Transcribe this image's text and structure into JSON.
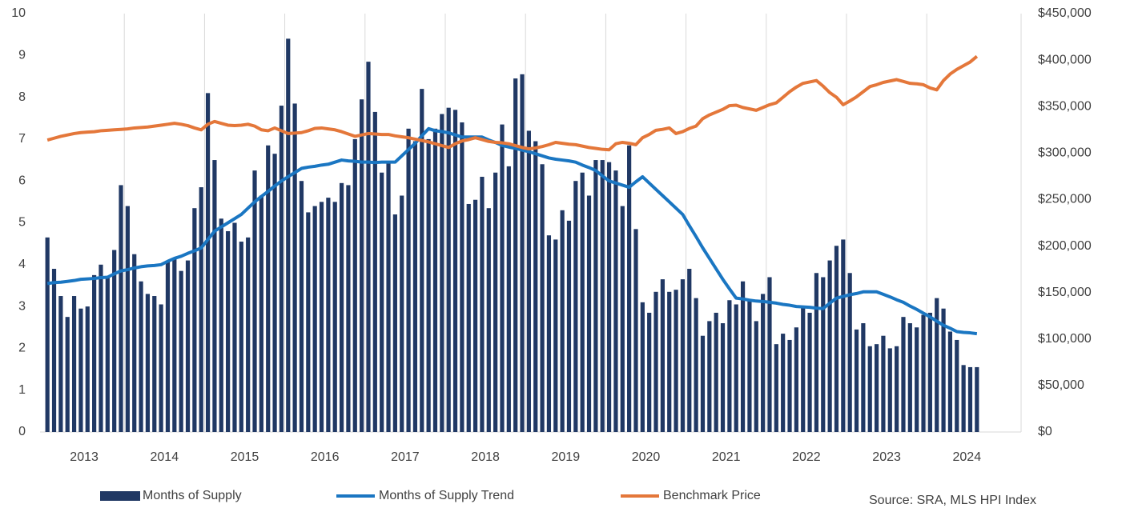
{
  "chart_data": {
    "type": "bar_line_dual",
    "source": "Source: SRA, MLS HPI Index",
    "categories": [
      null,
      null,
      null,
      null,
      null,
      null,
      "2013",
      null,
      null,
      null,
      null,
      null,
      null,
      null,
      null,
      null,
      null,
      null,
      "2014",
      null,
      null,
      null,
      null,
      null,
      null,
      null,
      null,
      null,
      null,
      null,
      "2015",
      null,
      null,
      null,
      null,
      null,
      null,
      null,
      null,
      null,
      null,
      null,
      "2016",
      null,
      null,
      null,
      null,
      null,
      null,
      null,
      null,
      null,
      null,
      null,
      "2017",
      null,
      null,
      null,
      null,
      null,
      null,
      null,
      null,
      null,
      null,
      null,
      "2018",
      null,
      null,
      null,
      null,
      null,
      null,
      null,
      null,
      null,
      null,
      null,
      "2019",
      null,
      null,
      null,
      null,
      null,
      null,
      null,
      null,
      null,
      null,
      null,
      "2020",
      null,
      null,
      null,
      null,
      null,
      null,
      null,
      null,
      null,
      null,
      null,
      "2021",
      null,
      null,
      null,
      null,
      null,
      null,
      null,
      null,
      null,
      null,
      null,
      "2022",
      null,
      null,
      null,
      null,
      null,
      null,
      null,
      null,
      null,
      null,
      null,
      "2023",
      null,
      null,
      null,
      null,
      null,
      null,
      null,
      null,
      null,
      null,
      null,
      "2024",
      null
    ],
    "series": [
      {
        "name": "Months of Supply",
        "type": "bar",
        "color": "#203864",
        "values": [
          4.65,
          3.9,
          3.25,
          2.75,
          3.25,
          2.95,
          3.0,
          3.75,
          4.0,
          3.7,
          4.35,
          5.9,
          5.4,
          4.25,
          3.6,
          3.3,
          3.25,
          3.05,
          4.1,
          4.15,
          3.85,
          4.1,
          5.35,
          5.85,
          8.1,
          6.5,
          5.1,
          4.8,
          5.0,
          4.55,
          4.65,
          6.25,
          5.65,
          6.85,
          6.65,
          7.8,
          9.4,
          7.85,
          6.0,
          5.25,
          5.4,
          5.5,
          5.6,
          5.5,
          5.95,
          5.9,
          7.0,
          7.95,
          8.85,
          7.65,
          6.2,
          6.45,
          5.2,
          5.65,
          7.25,
          6.95,
          8.2,
          7.0,
          7.25,
          7.6,
          7.75,
          7.7,
          7.4,
          5.45,
          5.55,
          6.1,
          5.35,
          6.2,
          7.35,
          6.35,
          8.45,
          8.55,
          7.2,
          6.95,
          6.4,
          4.7,
          4.6,
          5.3,
          5.05,
          6.0,
          6.2,
          5.65,
          6.5,
          6.5,
          6.45,
          6.25,
          5.4,
          6.85,
          4.85,
          3.1,
          2.85,
          3.35,
          3.65,
          3.35,
          3.4,
          3.65,
          3.9,
          3.2,
          2.3,
          2.65,
          2.85,
          2.6,
          3.15,
          3.05,
          3.6,
          3.15,
          2.65,
          3.3,
          3.7,
          2.1,
          2.35,
          2.2,
          2.5,
          3.0,
          2.85,
          3.8,
          3.7,
          4.1,
          4.45,
          4.6,
          3.8,
          2.45,
          2.6,
          2.05,
          2.1,
          2.3,
          2.0,
          2.05,
          2.75,
          2.6,
          2.5,
          2.8,
          2.85,
          3.2,
          2.95,
          2.4,
          2.2,
          1.6,
          1.55,
          1.55
        ]
      },
      {
        "name": "Months of Supply Trend",
        "type": "line",
        "color": "#1a76c2",
        "values": [
          3.55,
          3.57,
          3.58,
          3.6,
          3.62,
          3.65,
          3.66,
          3.67,
          3.69,
          3.7,
          3.78,
          3.85,
          3.88,
          3.92,
          3.95,
          3.97,
          3.98,
          4.0,
          4.08,
          4.15,
          4.2,
          4.27,
          4.33,
          4.4,
          4.6,
          4.8,
          4.9,
          5.0,
          5.1,
          5.2,
          5.35,
          5.5,
          5.63,
          5.75,
          5.88,
          6.0,
          6.1,
          6.2,
          6.3,
          6.33,
          6.35,
          6.38,
          6.4,
          6.45,
          6.5,
          6.48,
          6.47,
          6.45,
          6.45,
          6.44,
          6.45,
          6.45,
          6.45,
          6.6,
          6.75,
          6.9,
          7.08,
          7.25,
          7.2,
          7.18,
          7.15,
          7.1,
          7.05,
          7.05,
          7.05,
          7.05,
          6.98,
          6.92,
          6.85,
          6.81,
          6.78,
          6.74,
          6.7,
          6.65,
          6.6,
          6.55,
          6.52,
          6.5,
          6.48,
          6.45,
          6.38,
          6.32,
          6.25,
          6.12,
          6.0,
          5.95,
          5.9,
          5.85,
          5.98,
          6.1,
          5.95,
          5.8,
          5.65,
          5.5,
          5.35,
          5.2,
          4.93,
          4.67,
          4.4,
          4.15,
          3.9,
          3.65,
          3.42,
          3.2,
          3.18,
          3.15,
          3.13,
          3.12,
          3.1,
          3.08,
          3.05,
          3.03,
          3.0,
          2.99,
          2.98,
          2.96,
          2.95,
          3.08,
          3.2,
          3.24,
          3.28,
          3.31,
          3.35,
          3.35,
          3.35,
          3.29,
          3.23,
          3.16,
          3.1,
          3.01,
          2.93,
          2.84,
          2.75,
          2.65,
          2.55,
          2.48,
          2.4,
          2.38,
          2.37,
          2.35
        ]
      },
      {
        "name": "Benchmark Price",
        "type": "line",
        "axis": "y2",
        "color": "#e4773a",
        "values": [
          314000,
          316000,
          318000,
          319500,
          321000,
          322000,
          322500,
          323000,
          324000,
          324500,
          325000,
          325500,
          326000,
          327000,
          327500,
          328000,
          329000,
          330000,
          331000,
          332000,
          331000,
          329500,
          327000,
          325000,
          331000,
          334000,
          332000,
          330000,
          329500,
          330000,
          331000,
          329000,
          325000,
          324000,
          327000,
          324000,
          321000,
          321500,
          322000,
          324000,
          326500,
          327000,
          326000,
          325000,
          323000,
          320500,
          318000,
          319500,
          321000,
          320500,
          320000,
          320000,
          318500,
          317500,
          316500,
          315000,
          313500,
          312000,
          310000,
          308000,
          306000,
          310000,
          313000,
          314500,
          316500,
          314500,
          312500,
          311500,
          311000,
          310000,
          308000,
          306000,
          304500,
          305500,
          307000,
          309000,
          311500,
          310500,
          309500,
          309000,
          307500,
          306000,
          305000,
          304000,
          303500,
          310000,
          311500,
          310500,
          309000,
          316500,
          320000,
          324500,
          325500,
          327000,
          321000,
          323000,
          326500,
          329000,
          337000,
          341000,
          344000,
          347000,
          351000,
          351500,
          349000,
          347500,
          346000,
          349000,
          352000,
          354000,
          360000,
          366000,
          371000,
          375000,
          376500,
          378000,
          372000,
          365000,
          360000,
          352000,
          356000,
          360500,
          366000,
          371500,
          373500,
          376000,
          377500,
          379000,
          377000,
          375000,
          374500,
          373500,
          370000,
          368000,
          378000,
          385000,
          390000,
          394000,
          398000,
          404000
        ]
      }
    ],
    "ylim": [
      0,
      10
    ],
    "yticks": [
      0,
      1,
      2,
      3,
      4,
      5,
      6,
      7,
      8,
      9,
      10
    ],
    "y2lim": [
      0,
      450000
    ],
    "y2ticks": [
      {
        "value": 0,
        "label": "$0"
      },
      {
        "value": 50000,
        "label": "$50,000"
      },
      {
        "value": 100000,
        "label": "$100,000"
      },
      {
        "value": 150000,
        "label": "$150,000"
      },
      {
        "value": 200000,
        "label": "$200,000"
      },
      {
        "value": 250000,
        "label": "$250,000"
      },
      {
        "value": 300000,
        "label": "$300,000"
      },
      {
        "value": 350000,
        "label": "$350,000"
      },
      {
        "value": 400000,
        "label": "$400,000"
      },
      {
        "value": 450000,
        "label": "$450,000"
      }
    ],
    "grid": true,
    "legend": "bottom"
  }
}
